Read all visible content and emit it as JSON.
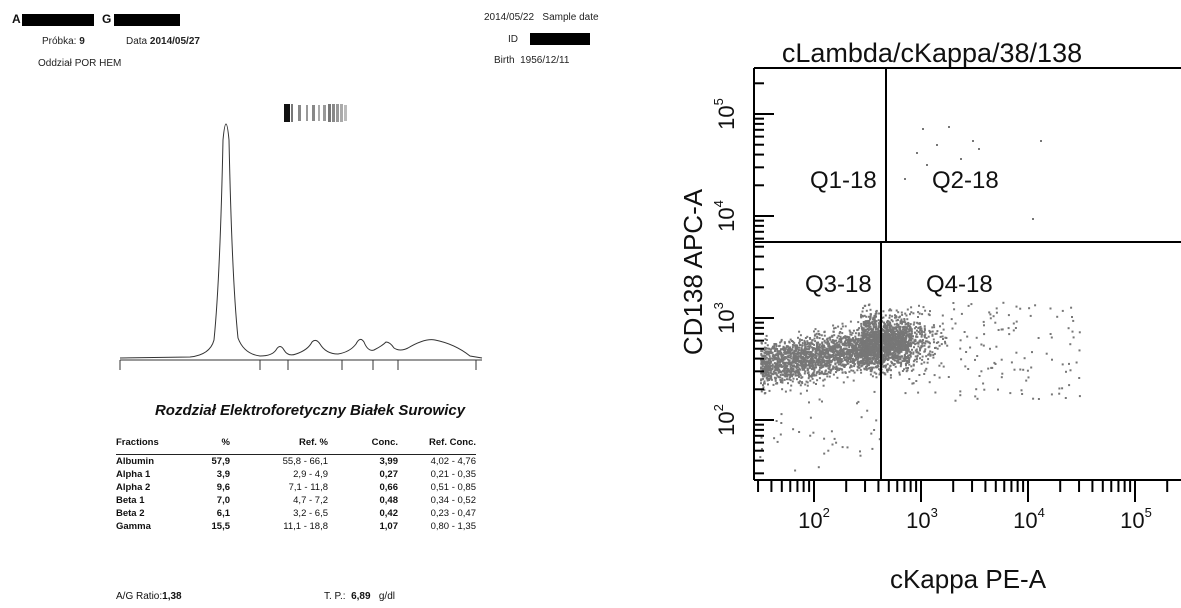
{
  "report": {
    "patient_initial_1": "A",
    "patient_initial_2": "G",
    "sample_label": "Próbka:",
    "sample_value": "9",
    "date_label": "Data",
    "date_value": "2014/05/27",
    "department_label": "Oddział",
    "department_value": "POR HEM",
    "sample_date_value": "2014/05/22",
    "sample_date_label": "Sample date",
    "id_label": "ID",
    "birth_label": "Birth",
    "birth_value": "1956/12/11",
    "section_title": "Rozdział Elektroforetyczny Białek Surowicy",
    "table": {
      "headers": [
        "Fractions",
        "%",
        "Ref. %",
        "Conc.",
        "Ref. Conc."
      ],
      "rows": [
        [
          "Albumin",
          "57,9",
          "55,8 - 66,1",
          "3,99",
          "4,02 - 4,76"
        ],
        [
          "Alpha 1",
          "3,9",
          "2,9 -  4,9",
          "0,27",
          "0,21 - 0,35"
        ],
        [
          "Alpha 2",
          "9,6",
          "7,1 - 11,8",
          "0,66",
          "0,51 - 0,85"
        ],
        [
          "Beta 1",
          "7,0",
          "4,7 -  7,2",
          "0,48",
          "0,34 - 0,52"
        ],
        [
          "Beta 2",
          "6,1",
          "3,2 -  6,5",
          "0,42",
          "0,23 - 0,47"
        ],
        [
          "Gamma",
          "15,5",
          "11,1 - 18,8",
          "1,07",
          "0,80 - 1,35"
        ]
      ]
    },
    "ag_ratio_label": "A/G Ratio:",
    "ag_ratio_value": "1,38",
    "tp_label": "T. P.:",
    "tp_value": "6,89",
    "tp_unit": "g/dl"
  },
  "flow": {
    "title": "cLambda/cKappa/38/138",
    "xlabel": "cKappa PE-A",
    "ylabel": "CD138 APC-A",
    "quadrants": [
      "Q1-18",
      "Q2-18",
      "Q3-18",
      "Q4-18"
    ],
    "x_ticks": [
      {
        "base": "10",
        "exp": "2"
      },
      {
        "base": "10",
        "exp": "3"
      },
      {
        "base": "10",
        "exp": "4"
      },
      {
        "base": "10",
        "exp": "5"
      }
    ],
    "y_ticks": [
      {
        "base": "10",
        "exp": "2"
      },
      {
        "base": "10",
        "exp": "3"
      },
      {
        "base": "10",
        "exp": "4"
      },
      {
        "base": "10",
        "exp": "5"
      }
    ],
    "dot_color": "#777777",
    "gate_color": "#000000"
  }
}
